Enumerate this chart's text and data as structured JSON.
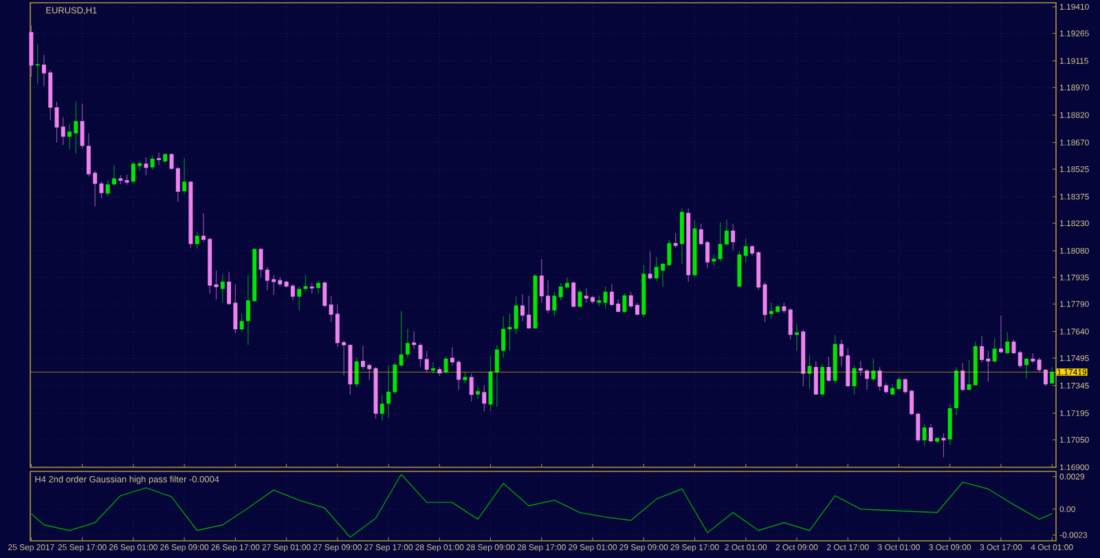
{
  "chart_data": [
    {
      "type": "candlestick",
      "title": "EURUSD,H1",
      "ohlc": [
        [
          1.19272,
          1.1931,
          1.19027,
          1.1909
        ],
        [
          1.1909,
          1.19205,
          1.18992,
          1.19097
        ],
        [
          1.19095,
          1.19147,
          1.18977,
          1.19047
        ],
        [
          1.19052,
          1.19065,
          1.18792,
          1.1886
        ],
        [
          1.18862,
          1.18892,
          1.18672,
          1.18752
        ],
        [
          1.18757,
          1.18807,
          1.18657,
          1.18702
        ],
        [
          1.18702,
          1.18772,
          1.18635,
          1.1873
        ],
        [
          1.1872,
          1.18892,
          1.1861,
          1.18787
        ],
        [
          1.18787,
          1.18882,
          1.18635,
          1.18652
        ],
        [
          1.18652,
          1.18722,
          1.18485,
          1.18497
        ],
        [
          1.18505,
          1.18517,
          1.18322,
          1.18445
        ],
        [
          1.18447,
          1.18457,
          1.18365,
          1.18395
        ],
        [
          1.18392,
          1.18465,
          1.18377,
          1.18442
        ],
        [
          1.18442,
          1.18547,
          1.18435,
          1.18475
        ],
        [
          1.18475,
          1.18492,
          1.18442,
          1.18462
        ],
        [
          1.18465,
          1.18495,
          1.1844,
          1.18452
        ],
        [
          1.18457,
          1.18567,
          1.18447,
          1.18555
        ],
        [
          1.18542,
          1.18567,
          1.18515,
          1.18557
        ],
        [
          1.18555,
          1.1859,
          1.18492,
          1.18532
        ],
        [
          1.18535,
          1.186,
          1.18522,
          1.18582
        ],
        [
          1.18585,
          1.18615,
          1.18547,
          1.18575
        ],
        [
          1.18567,
          1.18612,
          1.18562,
          1.18607
        ],
        [
          1.18607,
          1.18612,
          1.18522,
          1.18527
        ],
        [
          1.1853,
          1.18537,
          1.18347,
          1.18402
        ],
        [
          1.18405,
          1.18585,
          1.18392,
          1.18457
        ],
        [
          1.18457,
          1.18457,
          1.18097,
          1.18117
        ],
        [
          1.18117,
          1.18185,
          1.18092,
          1.18162
        ],
        [
          1.18162,
          1.18285,
          1.1813,
          1.1814
        ],
        [
          1.18145,
          1.1815,
          1.17847,
          1.1789
        ],
        [
          1.17897,
          1.17972,
          1.17815,
          1.17882
        ],
        [
          1.17872,
          1.17952,
          1.17797,
          1.17912
        ],
        [
          1.17912,
          1.17967,
          1.17785,
          1.1779
        ],
        [
          1.17797,
          1.17897,
          1.1763,
          1.17652
        ],
        [
          1.17652,
          1.1774,
          1.17642,
          1.17697
        ],
        [
          1.17697,
          1.17947,
          1.17567,
          1.1781
        ],
        [
          1.17805,
          1.18097,
          1.17805,
          1.1809
        ],
        [
          1.1809,
          1.18097,
          1.17935,
          1.17977
        ],
        [
          1.17977,
          1.1799,
          1.17865,
          1.17917
        ],
        [
          1.17925,
          1.17947,
          1.1784,
          1.1791
        ],
        [
          1.1792,
          1.17937,
          1.17885,
          1.17897
        ],
        [
          1.17912,
          1.17917,
          1.1788,
          1.17885
        ],
        [
          1.1789,
          1.17897,
          1.1781,
          1.1783
        ],
        [
          1.1783,
          1.17885,
          1.17755,
          1.17872
        ],
        [
          1.17872,
          1.17947,
          1.1786,
          1.17887
        ],
        [
          1.17885,
          1.17902,
          1.17847,
          1.17875
        ],
        [
          1.17877,
          1.17917,
          1.17847,
          1.17905
        ],
        [
          1.17907,
          1.17912,
          1.17772,
          1.1778
        ],
        [
          1.17787,
          1.17835,
          1.17692,
          1.17732
        ],
        [
          1.17737,
          1.17787,
          1.17555,
          1.17577
        ],
        [
          1.17582,
          1.17592,
          1.17402,
          1.17565
        ],
        [
          1.17567,
          1.17572,
          1.17297,
          1.17352
        ],
        [
          1.17352,
          1.17497,
          1.17335,
          1.17477
        ],
        [
          1.1748,
          1.17562,
          1.17435,
          1.17447
        ],
        [
          1.17457,
          1.17465,
          1.17377,
          1.17435
        ],
        [
          1.1744,
          1.17447,
          1.17167,
          1.17192
        ],
        [
          1.17192,
          1.17292,
          1.17155,
          1.17247
        ],
        [
          1.17247,
          1.17455,
          1.17172,
          1.17312
        ],
        [
          1.1731,
          1.17472,
          1.17297,
          1.1746
        ],
        [
          1.17455,
          1.17752,
          1.17447,
          1.17515
        ],
        [
          1.17515,
          1.17655,
          1.17497,
          1.17577
        ],
        [
          1.1758,
          1.1764,
          1.17547,
          1.17567
        ],
        [
          1.17567,
          1.17577,
          1.17447,
          1.1749
        ],
        [
          1.1749,
          1.17535,
          1.17417,
          1.17432
        ],
        [
          1.17427,
          1.17472,
          1.1741,
          1.1744
        ],
        [
          1.17435,
          1.17447,
          1.17397,
          1.17412
        ],
        [
          1.17417,
          1.17502,
          1.1741,
          1.17492
        ],
        [
          1.17497,
          1.17555,
          1.17455,
          1.17472
        ],
        [
          1.17475,
          1.17485,
          1.17322,
          1.17377
        ],
        [
          1.17375,
          1.17417,
          1.17357,
          1.17392
        ],
        [
          1.17392,
          1.1741,
          1.1726,
          1.17295
        ],
        [
          1.17297,
          1.1734,
          1.17272,
          1.17315
        ],
        [
          1.1731,
          1.17347,
          1.17205,
          1.17247
        ],
        [
          1.17242,
          1.1751,
          1.17207,
          1.17422
        ],
        [
          1.17417,
          1.17567,
          1.1723,
          1.17542
        ],
        [
          1.17535,
          1.17722,
          1.17497,
          1.17655
        ],
        [
          1.17652,
          1.17737,
          1.17535,
          1.17665
        ],
        [
          1.17655,
          1.17832,
          1.17627,
          1.17782
        ],
        [
          1.17782,
          1.17842,
          1.17697,
          1.17727
        ],
        [
          1.17732,
          1.17835,
          1.17657,
          1.17657
        ],
        [
          1.17657,
          1.17952,
          1.17657,
          1.17945
        ],
        [
          1.17945,
          1.18035,
          1.17797,
          1.17832
        ],
        [
          1.17835,
          1.1792,
          1.1774,
          1.17755
        ],
        [
          1.17755,
          1.17857,
          1.17722,
          1.17835
        ],
        [
          1.17827,
          1.17905,
          1.1781,
          1.17885
        ],
        [
          1.1788,
          1.17935,
          1.17872,
          1.17905
        ],
        [
          1.17907,
          1.17912,
          1.17772,
          1.17775
        ],
        [
          1.17775,
          1.17872,
          1.17772,
          1.17857
        ],
        [
          1.17835,
          1.17877,
          1.17797,
          1.1782
        ],
        [
          1.17827,
          1.17835,
          1.17792,
          1.17802
        ],
        [
          1.17797,
          1.17835,
          1.17777,
          1.1781
        ],
        [
          1.17797,
          1.17885,
          1.17765,
          1.17857
        ],
        [
          1.17857,
          1.17897,
          1.1778,
          1.17785
        ],
        [
          1.17792,
          1.17815,
          1.17747,
          1.17747
        ],
        [
          1.17747,
          1.17847,
          1.17742,
          1.17837
        ],
        [
          1.17837,
          1.17855,
          1.17767,
          1.17777
        ],
        [
          1.17785,
          1.17797,
          1.17727,
          1.17732
        ],
        [
          1.17732,
          1.18002,
          1.17717,
          1.17955
        ],
        [
          1.17955,
          1.18077,
          1.17922,
          1.1793
        ],
        [
          1.1793,
          1.18047,
          1.17917,
          1.17992
        ],
        [
          1.17972,
          1.1801,
          1.17885,
          1.1801
        ],
        [
          1.18002,
          1.1814,
          1.17997,
          1.18122
        ],
        [
          1.18122,
          1.18177,
          1.18097,
          1.18107
        ],
        [
          1.18117,
          1.1831,
          1.1801,
          1.18292
        ],
        [
          1.18287,
          1.1831,
          1.1791,
          1.17947
        ],
        [
          1.17947,
          1.18247,
          1.17935,
          1.18202
        ],
        [
          1.18197,
          1.18227,
          1.1811,
          1.18117
        ],
        [
          1.18127,
          1.18135,
          1.17985,
          1.18017
        ],
        [
          1.18022,
          1.1806,
          1.17997,
          1.18037
        ],
        [
          1.18035,
          1.18235,
          1.18022,
          1.18117
        ],
        [
          1.18115,
          1.18252,
          1.1811,
          1.1819
        ],
        [
          1.1819,
          1.18227,
          1.18085,
          1.18127
        ],
        [
          1.17885,
          1.18077,
          1.17885,
          1.1806
        ],
        [
          1.18052,
          1.18147,
          1.18017,
          1.18105
        ],
        [
          1.18105,
          1.1811,
          1.18052,
          1.18065
        ],
        [
          1.18072,
          1.18077,
          1.17867,
          1.1788
        ],
        [
          1.17897,
          1.1791,
          1.17692,
          1.1773
        ],
        [
          1.17735,
          1.17797,
          1.1771,
          1.17752
        ],
        [
          1.17747,
          1.17785,
          1.1774,
          1.17777
        ],
        [
          1.17777,
          1.17797,
          1.1774,
          1.17752
        ],
        [
          1.1776,
          1.17767,
          1.17597,
          1.17622
        ],
        [
          1.17622,
          1.1768,
          1.17535,
          1.17635
        ],
        [
          1.1764,
          1.17652,
          1.17342,
          1.1741
        ],
        [
          1.1741,
          1.17515,
          1.17327,
          1.17452
        ],
        [
          1.17447,
          1.1748,
          1.17292,
          1.17297
        ],
        [
          1.17297,
          1.1746,
          1.17292,
          1.17447
        ],
        [
          1.17447,
          1.17502,
          1.17367,
          1.17372
        ],
        [
          1.17372,
          1.17622,
          1.1736,
          1.17572
        ],
        [
          1.17572,
          1.17597,
          1.17452,
          1.17505
        ],
        [
          1.1751,
          1.17547,
          1.17335,
          1.17342
        ],
        [
          1.17342,
          1.17455,
          1.17297,
          1.1744
        ],
        [
          1.1744,
          1.1748,
          1.17397,
          1.17427
        ],
        [
          1.17427,
          1.17435,
          1.17322,
          1.17382
        ],
        [
          1.1738,
          1.17492,
          1.17367,
          1.17427
        ],
        [
          1.17427,
          1.17447,
          1.17317,
          1.1734
        ],
        [
          1.17347,
          1.1736,
          1.17302,
          1.1731
        ],
        [
          1.17297,
          1.17352,
          1.17292,
          1.17332
        ],
        [
          1.17327,
          1.17392,
          1.17322,
          1.1738
        ],
        [
          1.1738,
          1.17385,
          1.17302,
          1.1731
        ],
        [
          1.17317,
          1.17322,
          1.17185,
          1.1719
        ],
        [
          1.17192,
          1.17197,
          1.17035,
          1.17047
        ],
        [
          1.17047,
          1.17135,
          1.17017,
          1.17117
        ],
        [
          1.17117,
          1.17135,
          1.17035,
          1.17042
        ],
        [
          1.1704,
          1.17065,
          1.1703,
          1.1706
        ],
        [
          1.1706,
          1.17085,
          1.16955,
          1.17047
        ],
        [
          1.17052,
          1.17247,
          1.17022,
          1.17222
        ],
        [
          1.17222,
          1.17447,
          1.17185,
          1.17427
        ],
        [
          1.17427,
          1.17467,
          1.17315,
          1.17322
        ],
        [
          1.17322,
          1.17485,
          1.17322,
          1.17352
        ],
        [
          1.17347,
          1.17585,
          1.17347,
          1.1756
        ],
        [
          1.1756,
          1.17615,
          1.17472,
          1.17485
        ],
        [
          1.17492,
          1.17535,
          1.17367,
          1.17477
        ],
        [
          1.17477,
          1.17602,
          1.17472,
          1.17547
        ],
        [
          1.17547,
          1.17727,
          1.17522,
          1.17527
        ],
        [
          1.17522,
          1.17635,
          1.17517,
          1.17585
        ],
        [
          1.17585,
          1.17597,
          1.17517,
          1.17522
        ],
        [
          1.17527,
          1.17535,
          1.1744,
          1.17452
        ],
        [
          1.17457,
          1.17492,
          1.17382,
          1.17492
        ],
        [
          1.17492,
          1.17522,
          1.17467,
          1.17477
        ],
        [
          1.17487,
          1.17497,
          1.17422,
          1.1743
        ],
        [
          1.17432,
          1.17437,
          1.17342,
          1.17352
        ],
        [
          1.17357,
          1.17447,
          1.17352,
          1.17419
        ]
      ],
      "colors": [
        "#ee82ee",
        "#00e600",
        "#ee82ee",
        "#ee82ee",
        "#ee82ee",
        "#ee82ee",
        "#00e600",
        "#00e600",
        "#ee82ee",
        "#ee82ee",
        "#ee82ee",
        "#ee82ee",
        "#00e600",
        "#00e600",
        "#ee82ee",
        "#ee82ee",
        "#00e600",
        "#00e600",
        "#ee82ee",
        "#00e600",
        "#ee82ee",
        "#00e600",
        "#ee82ee",
        "#ee82ee",
        "#00e600",
        "#ee82ee",
        "#00e600",
        "#ee82ee",
        "#ee82ee",
        "#ee82ee",
        "#00e600",
        "#ee82ee",
        "#ee82ee",
        "#00e600",
        "#00e600",
        "#00e600",
        "#ee82ee",
        "#ee82ee",
        "#ee82ee",
        "#ee82ee",
        "#ee82ee",
        "#ee82ee",
        "#00e600",
        "#00e600",
        "#ee82ee",
        "#00e600",
        "#ee82ee",
        "#ee82ee",
        "#ee82ee",
        "#ee82ee",
        "#ee82ee",
        "#00e600",
        "#ee82ee",
        "#ee82ee",
        "#ee82ee",
        "#00e600",
        "#00e600",
        "#00e600",
        "#00e600",
        "#00e600",
        "#ee82ee",
        "#ee82ee",
        "#ee82ee",
        "#00e600",
        "#ee82ee",
        "#00e600",
        "#ee82ee",
        "#ee82ee",
        "#00e600",
        "#ee82ee",
        "#00e600",
        "#ee82ee",
        "#00e600",
        "#00e600",
        "#00e600",
        "#00e600",
        "#00e600",
        "#ee82ee",
        "#ee82ee",
        "#00e600",
        "#ee82ee",
        "#ee82ee",
        "#00e600",
        "#00e600",
        "#00e600",
        "#ee82ee",
        "#00e600",
        "#ee82ee",
        "#ee82ee",
        "#00e600",
        "#00e600",
        "#ee82ee",
        "#ee82ee",
        "#00e600",
        "#ee82ee",
        "#ee82ee",
        "#00e600",
        "#ee82ee",
        "#00e600",
        "#00e600",
        "#00e600",
        "#ee82ee",
        "#00e600",
        "#ee82ee",
        "#00e600",
        "#ee82ee",
        "#ee82ee",
        "#00e600",
        "#00e600",
        "#00e600",
        "#ee82ee",
        "#00e600",
        "#00e600",
        "#ee82ee",
        "#ee82ee",
        "#ee82ee",
        "#00e600",
        "#00e600",
        "#ee82ee",
        "#ee82ee",
        "#00e600",
        "#ee82ee",
        "#00e600",
        "#ee82ee",
        "#00e600",
        "#ee82ee",
        "#00e600",
        "#ee82ee",
        "#ee82ee",
        "#00e600",
        "#ee82ee",
        "#ee82ee",
        "#00e600",
        "#ee82ee",
        "#ee82ee",
        "#00e600",
        "#00e600",
        "#ee82ee",
        "#ee82ee",
        "#ee82ee",
        "#00e600",
        "#ee82ee",
        "#00e600",
        "#ee82ee",
        "#00e600",
        "#00e600",
        "#ee82ee",
        "#00e600",
        "#00e600",
        "#ee82ee",
        "#ee82ee",
        "#00e600",
        "#ee82ee",
        "#00e600",
        "#ee82ee",
        "#ee82ee",
        "#00e600",
        "#ee82ee",
        "#ee82ee",
        "#ee82ee",
        "#00e600"
      ],
      "ylim": [
        1.169,
        1.19432
      ],
      "yticks": [
        {
          "value": 1.1941,
          "label": "1.19410"
        },
        {
          "value": 1.19265,
          "label": "1.19265"
        },
        {
          "value": 1.19115,
          "label": "1.19115"
        },
        {
          "value": 1.1897,
          "label": "1.18970"
        },
        {
          "value": 1.1882,
          "label": "1.18820"
        },
        {
          "value": 1.1867,
          "label": "1.18670"
        },
        {
          "value": 1.18525,
          "label": "1.18525"
        },
        {
          "value": 1.18375,
          "label": "1.18375"
        },
        {
          "value": 1.1823,
          "label": "1.18230"
        },
        {
          "value": 1.1808,
          "label": "1.18080"
        },
        {
          "value": 1.17935,
          "label": "1.17935"
        },
        {
          "value": 1.1779,
          "label": "1.17790"
        },
        {
          "value": 1.1764,
          "label": "1.17640"
        },
        {
          "value": 1.17495,
          "label": "1.17495"
        },
        {
          "value": 1.17345,
          "label": "1.17345"
        },
        {
          "value": 1.17195,
          "label": "1.17195"
        },
        {
          "value": 1.1705,
          "label": "1.17050"
        },
        {
          "value": 1.169,
          "label": "1.16900"
        }
      ],
      "ref_lines": [
        {
          "axis": "y",
          "value": 1.17419,
          "label": "1.17419",
          "color": "#ffd700"
        }
      ],
      "grid": true,
      "tick_labels": "y"
    },
    {
      "type": "line",
      "title": "H4 2nd order Gaussian high pass filter -0.0004",
      "categories": [
        "25 Sep 2017",
        null,
        null,
        null,
        null,
        null,
        null,
        null,
        "25 Sep 17:00",
        null,
        null,
        null,
        null,
        null,
        null,
        null,
        "26 Sep 01:00",
        null,
        null,
        null,
        null,
        null,
        null,
        null,
        "26 Sep 09:00",
        null,
        null,
        null,
        null,
        null,
        null,
        null,
        "26 Sep 17:00",
        null,
        null,
        null,
        null,
        null,
        null,
        null,
        "27 Sep 01:00",
        null,
        null,
        null,
        null,
        null,
        null,
        null,
        "27 Sep 09:00",
        null,
        null,
        null,
        null,
        null,
        null,
        null,
        "27 Sep 17:00",
        null,
        null,
        null,
        null,
        null,
        null,
        null,
        "28 Sep 01:00",
        null,
        null,
        null,
        null,
        null,
        null,
        null,
        "28 Sep 09:00",
        null,
        null,
        null,
        null,
        null,
        null,
        null,
        "28 Sep 17:00",
        null,
        null,
        null,
        null,
        null,
        null,
        null,
        "29 Sep 01:00",
        null,
        null,
        null,
        null,
        null,
        null,
        null,
        "29 Sep 09:00",
        null,
        null,
        null,
        null,
        null,
        null,
        null,
        "29 Sep 17:00",
        null,
        null,
        null,
        null,
        null,
        null,
        null,
        "2 Oct 01:00",
        null,
        null,
        null,
        null,
        null,
        null,
        null,
        "2 Oct 09:00",
        null,
        null,
        null,
        null,
        null,
        null,
        null,
        "2 Oct 17:00",
        null,
        null,
        null,
        null,
        null,
        null,
        null,
        "3 Oct 01:00",
        null,
        null,
        null,
        null,
        null,
        null,
        null,
        "3 Oct 09:00",
        null,
        null,
        null,
        null,
        null,
        null,
        null,
        "3 Oct 17:00",
        null,
        null,
        null,
        null,
        null,
        null,
        null,
        "4 Oct 01:00"
      ],
      "series": [
        {
          "color": "#00a000",
          "values": [
            -0.0004,
            null,
            -0.0014,
            null,
            null,
            null,
            -0.0019,
            null,
            null,
            null,
            -0.0012,
            null,
            null,
            null,
            0.0012,
            null,
            null,
            null,
            0.0019,
            null,
            null,
            null,
            0.0011,
            null,
            null,
            null,
            -0.0019,
            null,
            null,
            null,
            -0.0014,
            null,
            null,
            null,
            0.0001,
            null,
            null,
            null,
            0.0017,
            null,
            null,
            null,
            0.0008,
            null,
            null,
            null,
            0.0001,
            null,
            null,
            null,
            -0.0025,
            null,
            null,
            null,
            -0.0008,
            null,
            null,
            null,
            0.0031,
            null,
            null,
            null,
            0.0006,
            null,
            null,
            null,
            0.0006,
            null,
            null,
            null,
            -0.0009,
            null,
            null,
            null,
            0.0023,
            null,
            null,
            null,
            0.0003,
            null,
            null,
            null,
            0.0008,
            null,
            null,
            null,
            -0.0003,
            null,
            null,
            null,
            -0.0007,
            null,
            null,
            null,
            -0.001,
            null,
            null,
            null,
            0.0009,
            null,
            null,
            null,
            0.0018,
            null,
            null,
            null,
            -0.0021,
            null,
            null,
            null,
            -0.0003,
            null,
            null,
            null,
            -0.0019,
            null,
            null,
            null,
            -0.0012,
            null,
            null,
            null,
            -0.0019,
            null,
            null,
            null,
            0.0012,
            null,
            null,
            null,
            0,
            null,
            null,
            null,
            -0.0001,
            null,
            null,
            null,
            -0.0002,
            null,
            null,
            null,
            -0.0003,
            null,
            null,
            null,
            0.0024,
            null,
            null,
            null,
            0.0018,
            null,
            null,
            null,
            0.0004,
            null,
            null,
            null,
            -0.0009,
            null,
            -0.0004
          ]
        }
      ],
      "ylim": [
        -0.00282,
        0.00336
      ],
      "yticks": [
        0.0029,
        {
          "value": 0,
          "label": "0.00"
        },
        -0.0023
      ],
      "grid": true
    }
  ]
}
